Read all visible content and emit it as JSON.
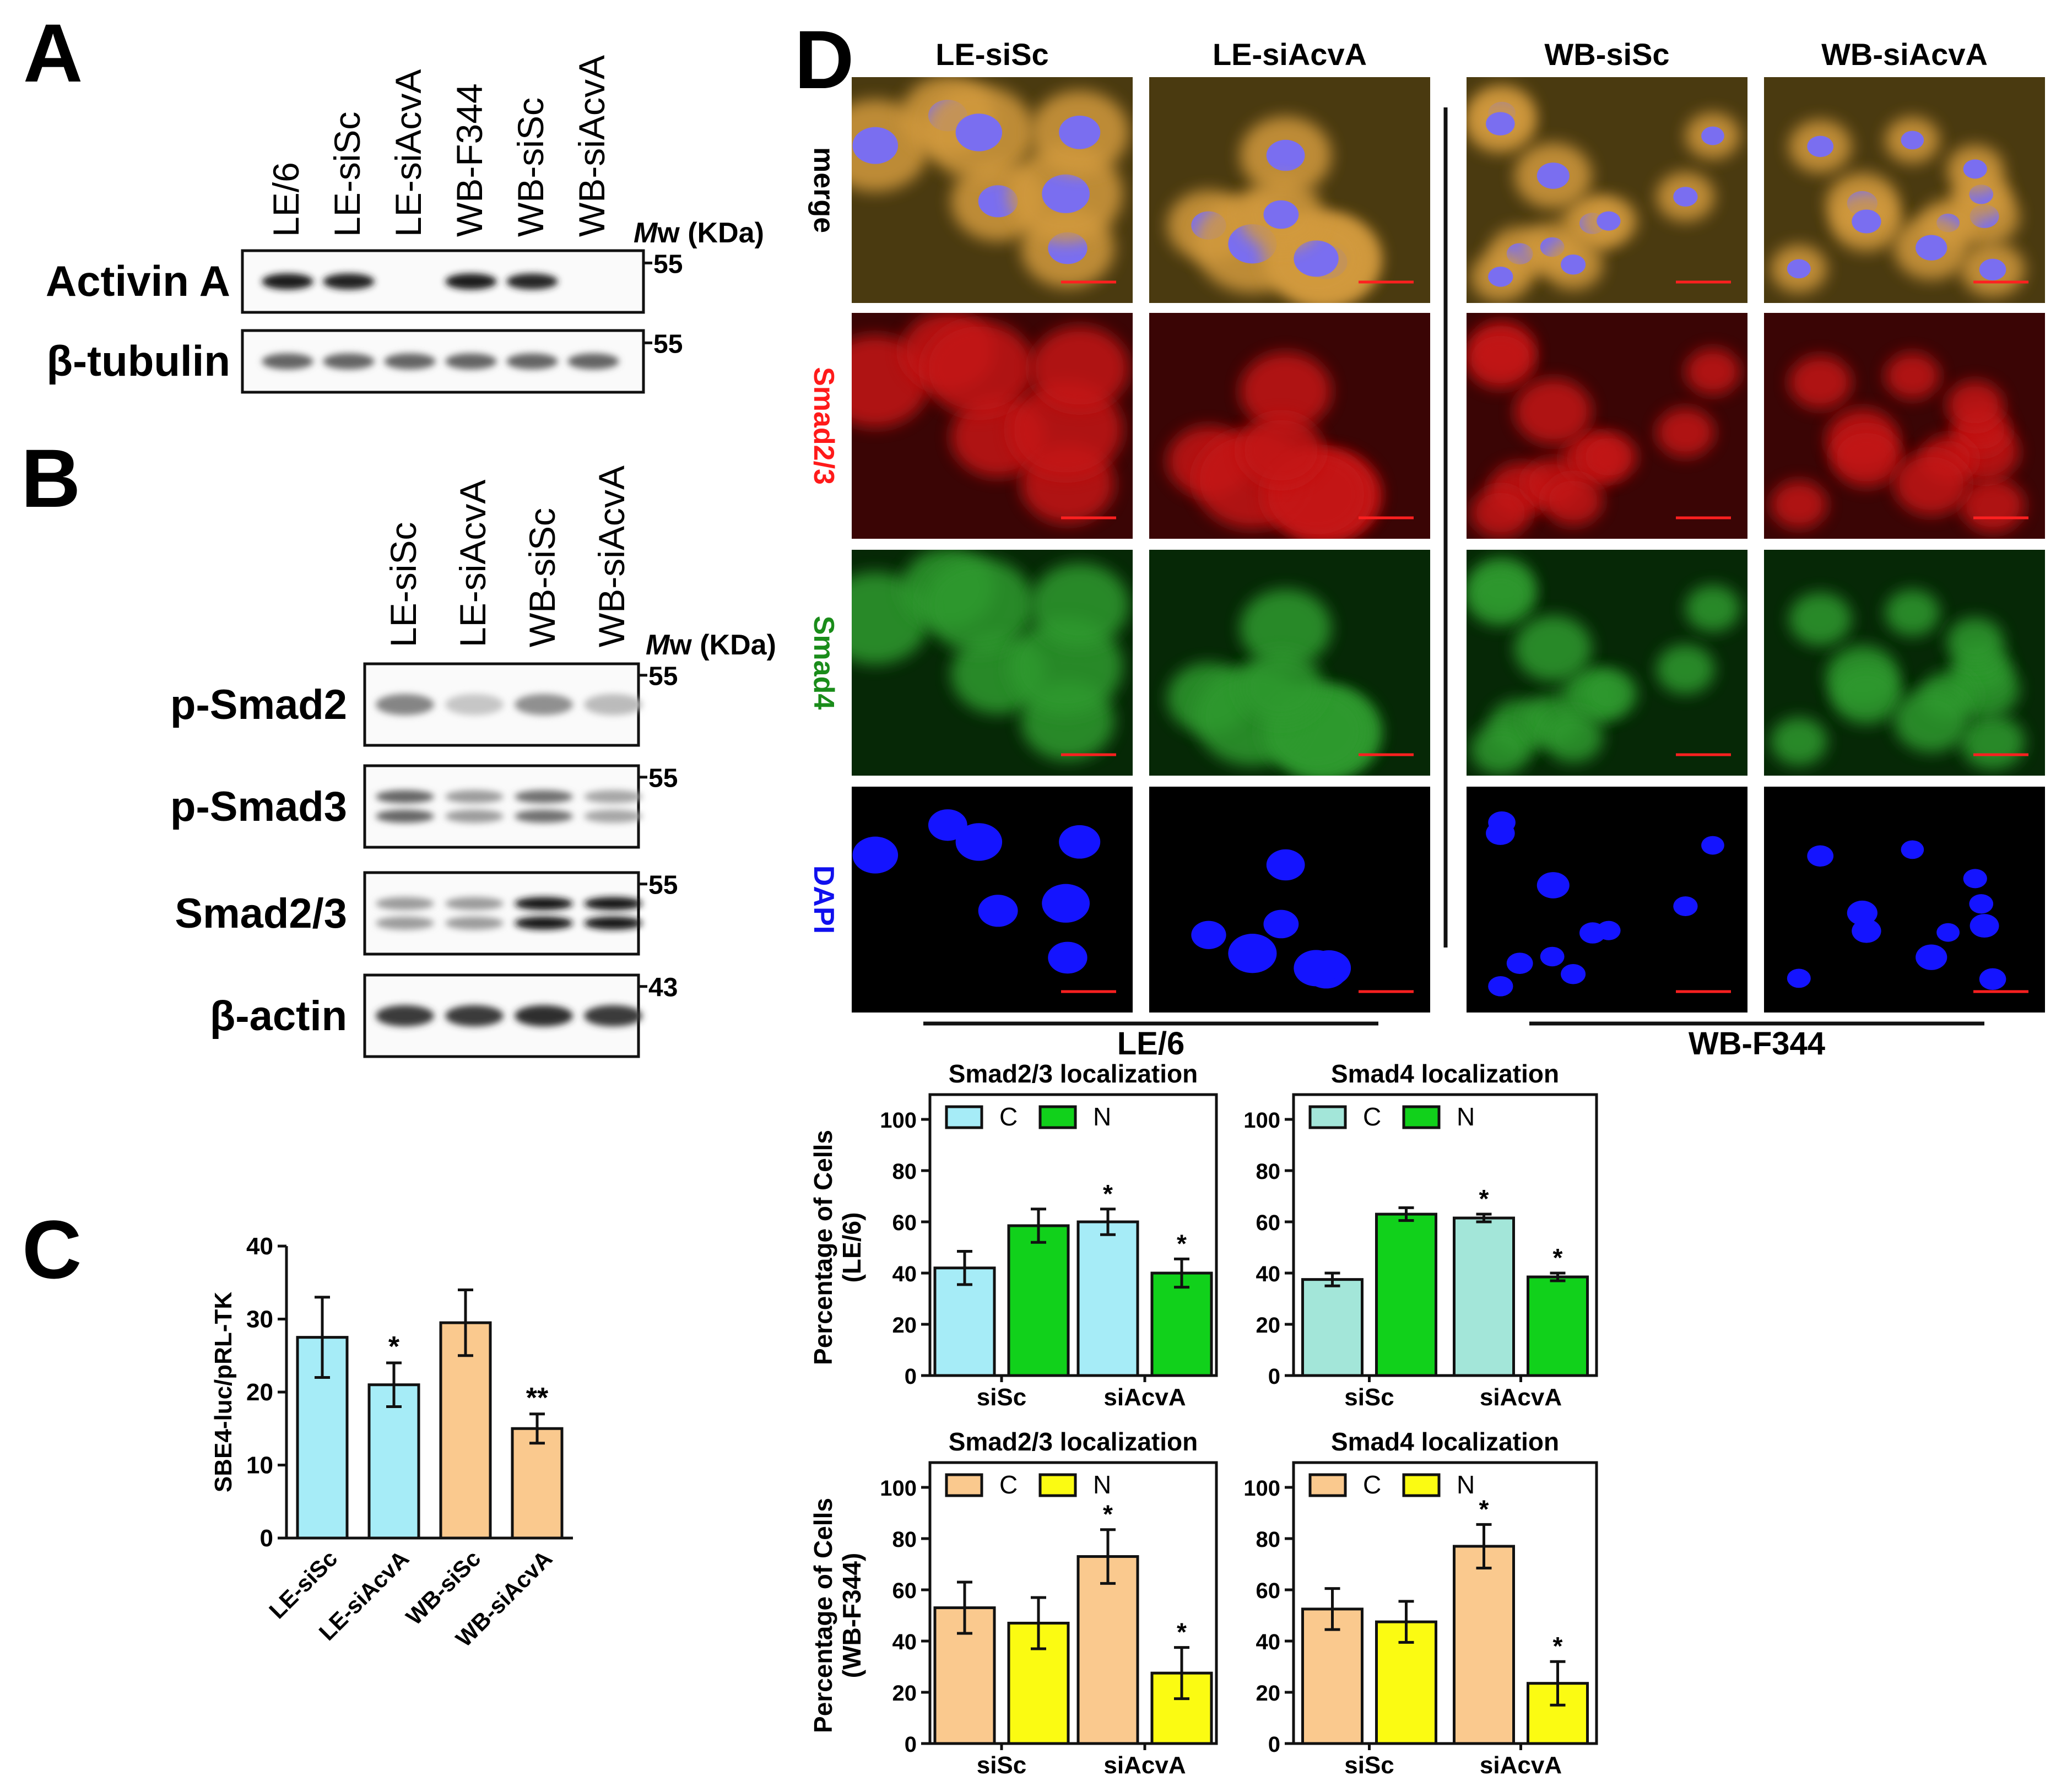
{
  "panels": {
    "a": "A",
    "b": "B",
    "c": "C",
    "d": "D"
  },
  "mw_label": {
    "italic": "M",
    "rest": "w (KDa)"
  },
  "blot_a": {
    "lanes": [
      "LE/6",
      "LE-siSc",
      "LE-siAcvA",
      "WB-F344",
      "WB-siSc",
      "WB-siAcvA"
    ],
    "rows": [
      {
        "label": "Activin A",
        "mw": "55",
        "intensity": [
          0.95,
          0.92,
          0.0,
          0.95,
          0.9,
          0.0
        ]
      },
      {
        "label": "β-tubulin",
        "mw": "55",
        "intensity": [
          0.6,
          0.6,
          0.6,
          0.6,
          0.6,
          0.6
        ]
      }
    ]
  },
  "blot_b": {
    "lanes": [
      "LE-siSc",
      "LE-siAcvA",
      "WB-siSc",
      "WB-siAcvA"
    ],
    "rows": [
      {
        "label": "p-Smad2",
        "mw": "55",
        "intensity": [
          0.45,
          0.15,
          0.4,
          0.2
        ]
      },
      {
        "label": "p-Smad3",
        "mw": "55",
        "intensity": [
          0.6,
          0.35,
          0.55,
          0.3
        ]
      },
      {
        "label": "Smad2/3",
        "mw": "55",
        "intensity": [
          0.35,
          0.35,
          0.98,
          0.98
        ]
      },
      {
        "label": "β-actin",
        "mw": "43",
        "intensity": [
          0.8,
          0.8,
          0.85,
          0.8
        ]
      }
    ]
  },
  "micro": {
    "columns": [
      "LE-siSc",
      "LE-siAcvA",
      "WB-siSc",
      "WB-siAcvA"
    ],
    "rows": [
      {
        "label": "merge",
        "color": "#000000"
      },
      {
        "label": "Smad2/3",
        "color": "#ff1a1a"
      },
      {
        "label": "Smad4",
        "color": "#1a8c1a"
      },
      {
        "label": "DAPI",
        "color": "#1010ee"
      }
    ],
    "groups": [
      "LE/6",
      "WB-F344"
    ]
  },
  "chart_data": [
    {
      "type": "bar",
      "panel": "C",
      "categories": [
        "LE-siSc",
        "LE-siAcvA",
        "WB-siSc",
        "WB-siAcvA"
      ],
      "values": [
        27.5,
        21,
        29.5,
        15
      ],
      "errors": [
        5.5,
        3,
        4.5,
        2
      ],
      "significance": [
        "",
        "*",
        "",
        "**"
      ],
      "colors": [
        "#a6ecf7",
        "#a6ecf7",
        "#fac98e",
        "#fac98e"
      ],
      "ylabel": "SBE4-luc/pRL-TK",
      "ylim": [
        0,
        40
      ],
      "yticks": [
        0,
        10,
        20,
        30,
        40
      ]
    },
    {
      "type": "bar",
      "title": "Smad2/3 localization",
      "ylabel": "Percentage of Cells",
      "ylabel2": "(LE/6)",
      "categories": [
        "siSc",
        "siAcvA"
      ],
      "series": [
        {
          "name": "C",
          "values": [
            42,
            60
          ],
          "errors": [
            6.5,
            5
          ],
          "significance": [
            "",
            "*"
          ],
          "color": "#a6ecf7"
        },
        {
          "name": "N",
          "values": [
            58.5,
            40
          ],
          "errors": [
            6.5,
            5.5
          ],
          "significance": [
            "",
            "*"
          ],
          "color": "#11d11b"
        }
      ],
      "ylim": [
        0,
        100
      ],
      "yticks": [
        0,
        20,
        40,
        60,
        80,
        100
      ]
    },
    {
      "type": "bar",
      "title": "Smad4 localization",
      "ylabel": "",
      "categories": [
        "siSc",
        "siAcvA"
      ],
      "series": [
        {
          "name": "C",
          "values": [
            37.5,
            61.5
          ],
          "errors": [
            2.5,
            1.5
          ],
          "significance": [
            "",
            "*"
          ],
          "color": "#a3e6d9"
        },
        {
          "name": "N",
          "values": [
            63,
            38.5
          ],
          "errors": [
            2.5,
            1.5
          ],
          "significance": [
            "",
            "*"
          ],
          "color": "#11d11b"
        }
      ],
      "ylim": [
        0,
        100
      ],
      "yticks": [
        0,
        20,
        40,
        60,
        80,
        100
      ]
    },
    {
      "type": "bar",
      "title": "Smad2/3 localization",
      "ylabel": "Percentage of Cells",
      "ylabel2": "(WB-F344)",
      "categories": [
        "siSc",
        "siAcvA"
      ],
      "series": [
        {
          "name": "C",
          "values": [
            53,
            73
          ],
          "errors": [
            10,
            10.5
          ],
          "significance": [
            "",
            "*"
          ],
          "color": "#fac98e"
        },
        {
          "name": "N",
          "values": [
            47,
            27.5
          ],
          "errors": [
            10,
            10
          ],
          "significance": [
            "",
            "*"
          ],
          "color": "#fbfb12"
        }
      ],
      "ylim": [
        0,
        100
      ],
      "yticks": [
        0,
        20,
        40,
        60,
        80,
        100
      ]
    },
    {
      "type": "bar",
      "title": "Smad4 localization",
      "ylabel": "",
      "categories": [
        "siSc",
        "siAcvA"
      ],
      "series": [
        {
          "name": "C",
          "values": [
            52.5,
            77
          ],
          "errors": [
            8,
            8.5
          ],
          "significance": [
            "",
            "*"
          ],
          "color": "#fac98e"
        },
        {
          "name": "N",
          "values": [
            47.5,
            23.5
          ],
          "errors": [
            8,
            8.5
          ],
          "significance": [
            "",
            "*"
          ],
          "color": "#fbfb12"
        }
      ],
      "ylim": [
        0,
        100
      ],
      "yticks": [
        0,
        20,
        40,
        60,
        80,
        100
      ]
    }
  ]
}
